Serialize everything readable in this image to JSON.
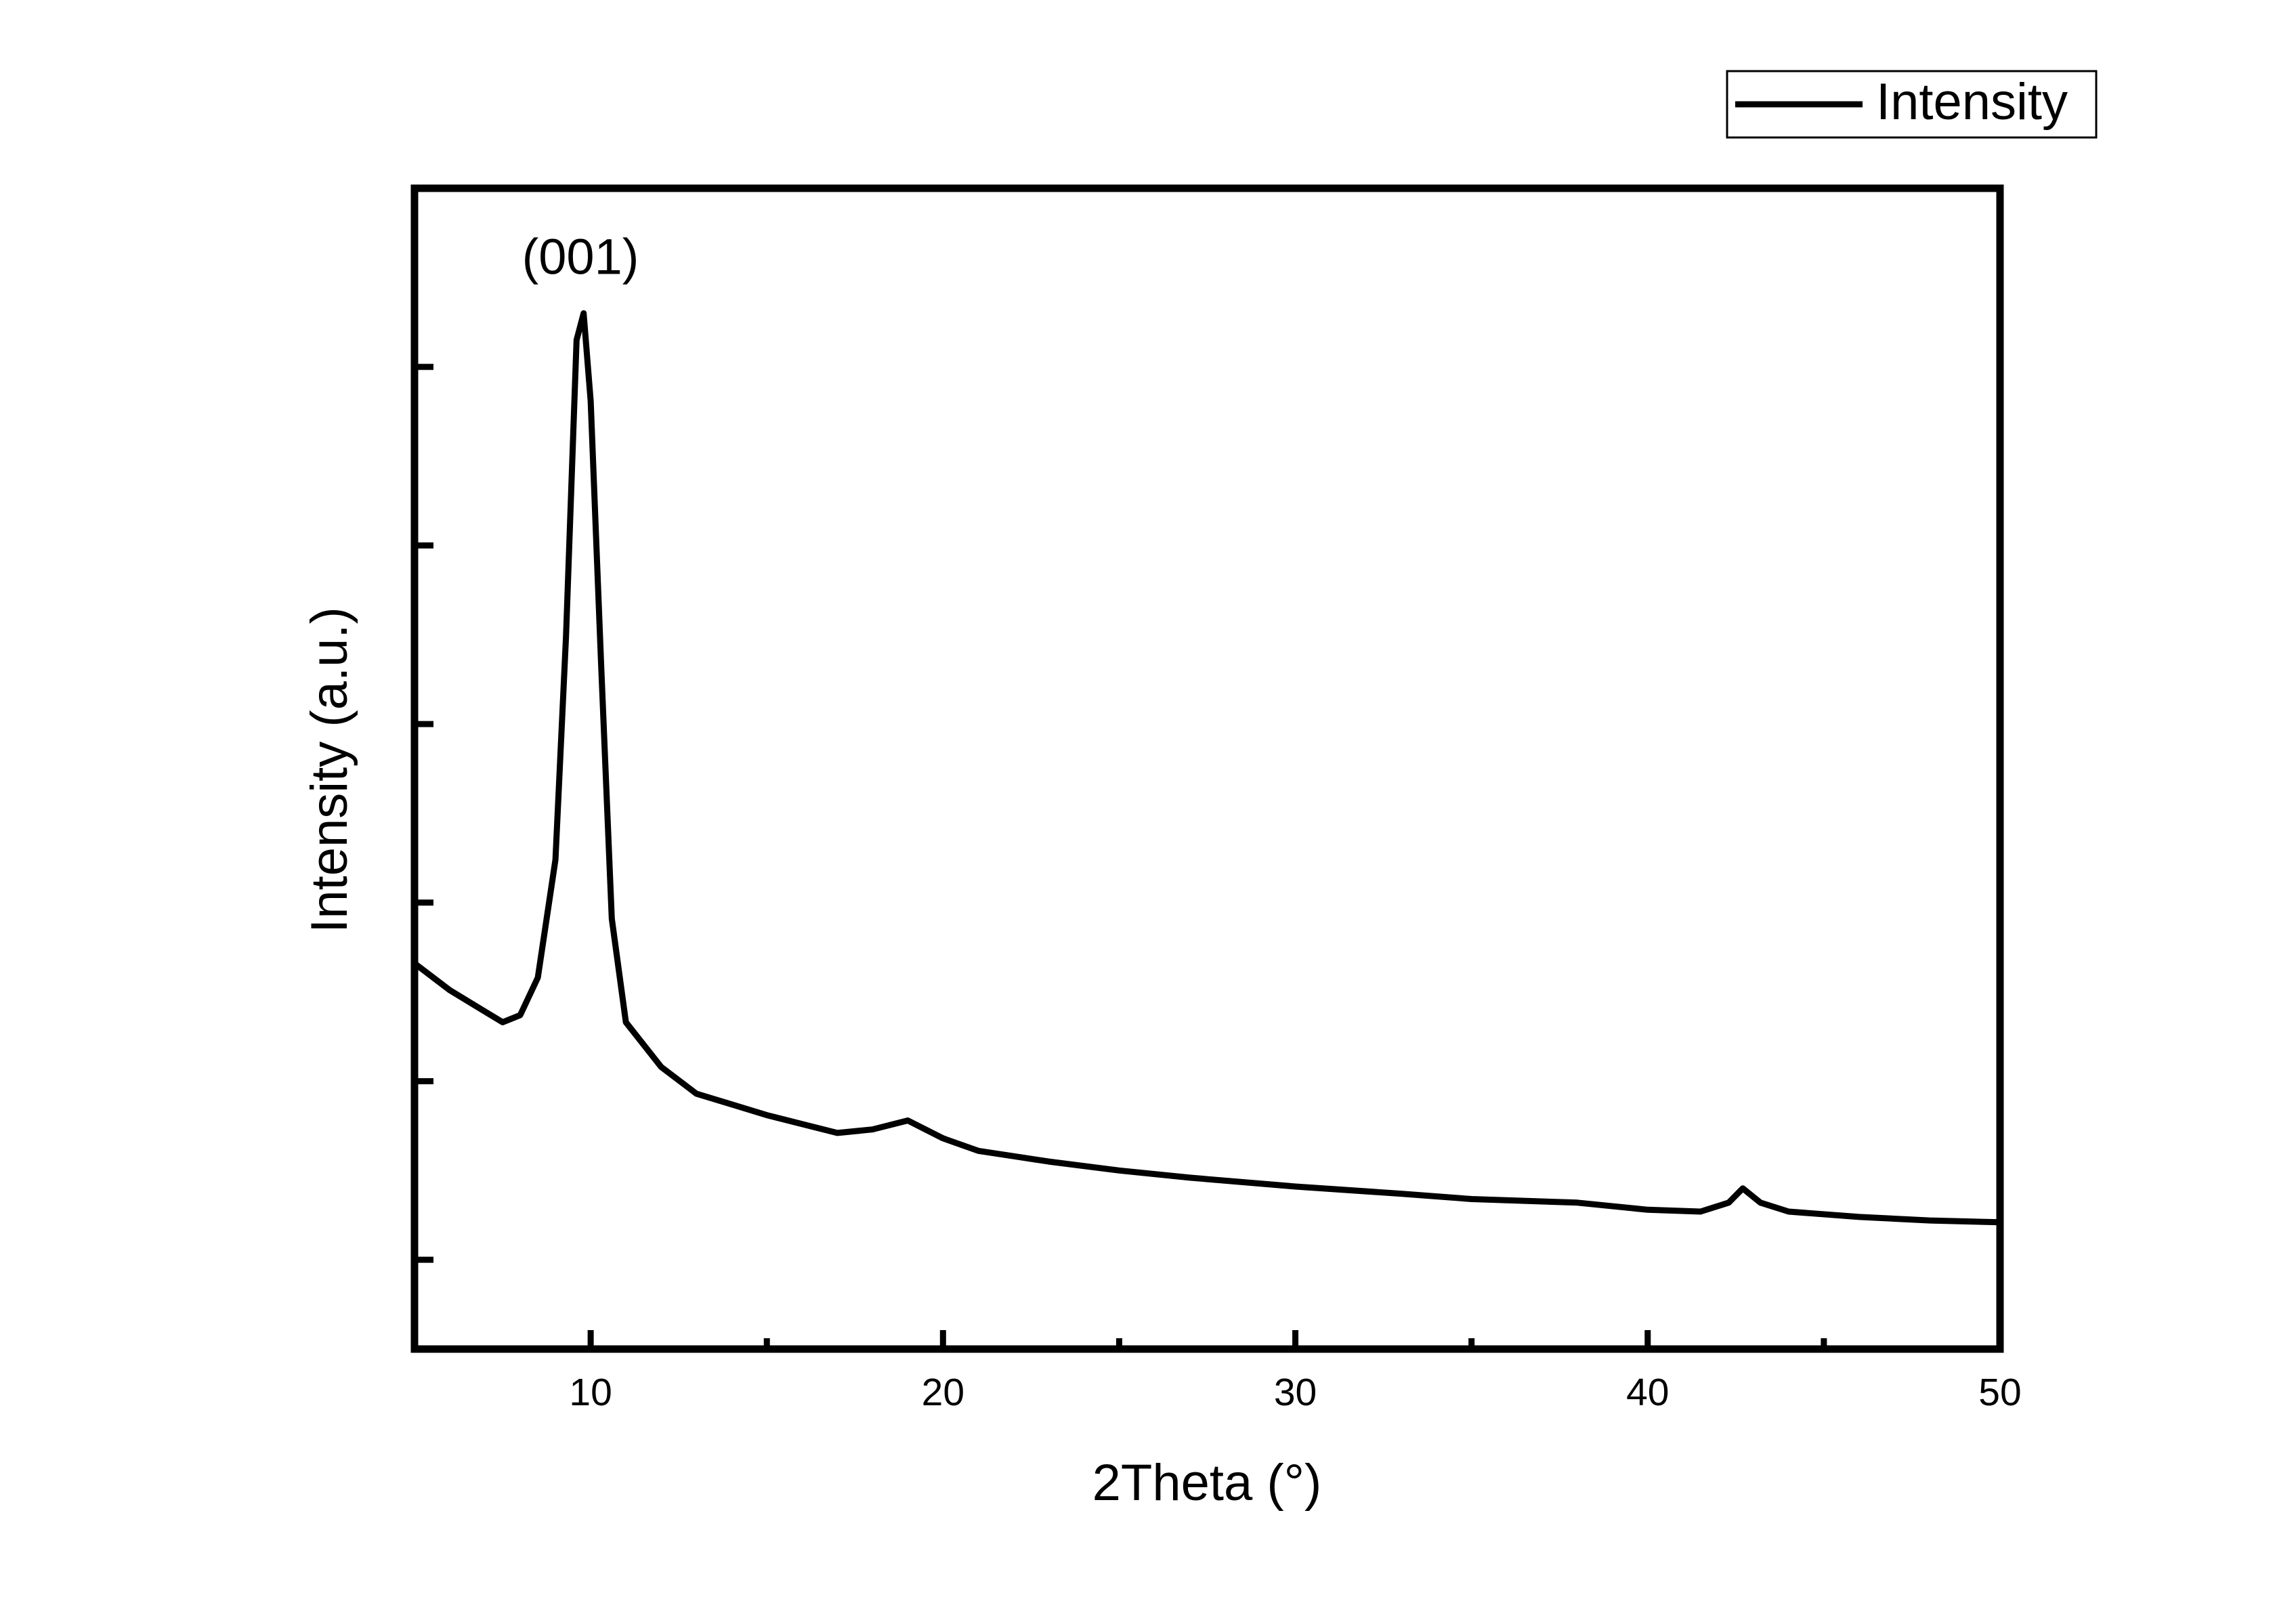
{
  "chart_data": {
    "type": "line",
    "x_label": "2Theta (°)",
    "y_label": "Intensity (a.u.)",
    "annotation": "(001)",
    "x": [
      5,
      6,
      7,
      7.5,
      8,
      8.5,
      9,
      9.3,
      9.6,
      9.8,
      10,
      10.3,
      10.6,
      11,
      12,
      13,
      14,
      15,
      16,
      17,
      18,
      19,
      20,
      21,
      22,
      23,
      25,
      27,
      30,
      33,
      35,
      38,
      40,
      41.5,
      42.3,
      42.7,
      43.2,
      44,
      46,
      48,
      50
    ],
    "series": [
      {
        "name": "Intensity",
        "color": "#000000",
        "values": [
          2.66,
          2.51,
          2.39,
          2.33,
          2.37,
          2.58,
          3.24,
          4.49,
          6.15,
          6.3,
          5.81,
          4.32,
          2.91,
          2.33,
          2.08,
          1.93,
          1.87,
          1.81,
          1.76,
          1.71,
          1.73,
          1.78,
          1.68,
          1.61,
          1.58,
          1.55,
          1.5,
          1.46,
          1.41,
          1.37,
          1.34,
          1.32,
          1.28,
          1.27,
          1.32,
          1.4,
          1.32,
          1.27,
          1.24,
          1.22,
          1.21
        ]
      }
    ],
    "xlim": [
      5,
      50
    ],
    "xticks": [
      10,
      20,
      30,
      40,
      50
    ],
    "xminorticks": [
      15,
      25,
      35,
      45
    ],
    "ylim": [
      0.5,
      7
    ],
    "yticks": [
      1,
      2,
      3,
      4,
      5,
      6
    ],
    "ytick_labels": false,
    "grid": false,
    "legend": "top-right"
  }
}
